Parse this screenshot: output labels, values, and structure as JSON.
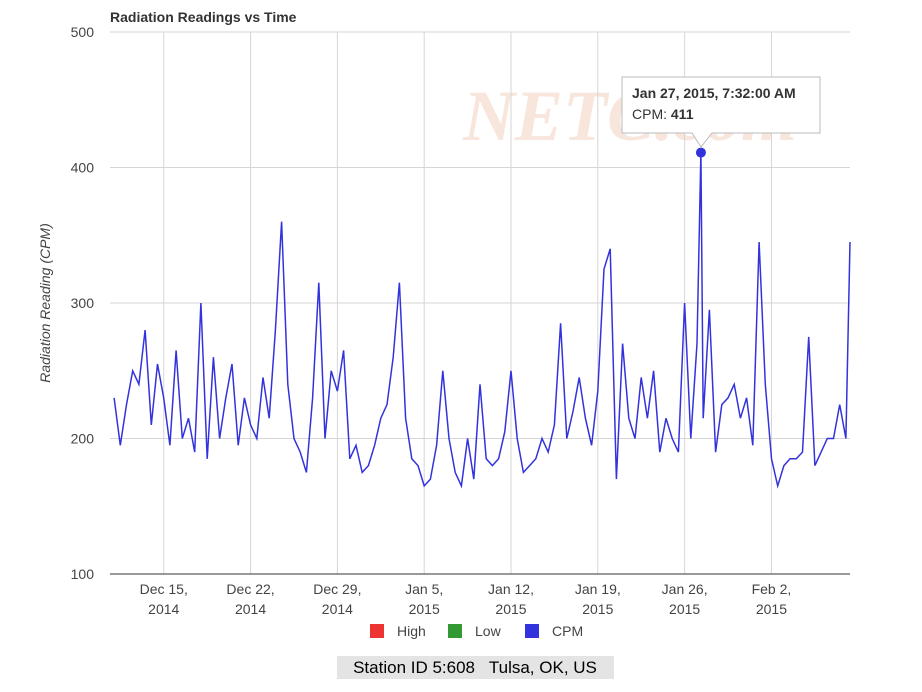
{
  "chart_data": {
    "type": "line",
    "title": "Radiation Readings vs Time",
    "y_label": "Radiation Reading (CPM)",
    "watermark": "NETC.com",
    "footer": "Station ID 5:608   Tulsa, OK, US",
    "tooltip": {
      "title": "Jan 27, 2015, 7:32:00 AM",
      "label": "CPM:"
    },
    "xlim": [
      "2014-12-10T16:00",
      "2015-02-08T08:00"
    ],
    "xticks": [
      {
        "value": "2014-12-15T00:00",
        "label": "Dec 15, 2014"
      },
      {
        "value": "2014-12-22T00:00",
        "label": "Dec 22, 2014"
      },
      {
        "value": "2014-12-29T00:00",
        "label": "Dec 29, 2014"
      },
      {
        "value": "2015-01-05T00:00",
        "label": "Jan 5, 2015"
      },
      {
        "value": "2015-01-12T00:00",
        "label": "Jan 12, 2015"
      },
      {
        "value": "2015-01-19T00:00",
        "label": "Jan 19, 2015"
      },
      {
        "value": "2015-01-26T00:00",
        "label": "Jan 26, 2015"
      },
      {
        "value": "2015-02-02T00:00",
        "label": "Feb 2, 2015"
      }
    ],
    "ylim": [
      100,
      500
    ],
    "yticks": [
      100,
      200,
      300,
      400,
      500
    ],
    "grid": true,
    "x": [
      "2014-12-11T00:00",
      "2014-12-11T12:00",
      "2014-12-12T00:00",
      "2014-12-12T12:00",
      "2014-12-13T00:00",
      "2014-12-13T12:00",
      "2014-12-14T00:00",
      "2014-12-14T12:00",
      "2014-12-15T00:00",
      "2014-12-15T12:00",
      "2014-12-16T00:00",
      "2014-12-16T12:00",
      "2014-12-17T00:00",
      "2014-12-17T12:00",
      "2014-12-18T00:00",
      "2014-12-18T12:00",
      "2014-12-19T00:00",
      "2014-12-19T12:00",
      "2014-12-20T00:00",
      "2014-12-20T12:00",
      "2014-12-21T00:00",
      "2014-12-21T12:00",
      "2014-12-22T00:00",
      "2014-12-22T12:00",
      "2014-12-23T00:00",
      "2014-12-23T12:00",
      "2014-12-24T00:00",
      "2014-12-24T12:00",
      "2014-12-25T00:00",
      "2014-12-25T12:00",
      "2014-12-26T00:00",
      "2014-12-26T12:00",
      "2014-12-27T00:00",
      "2014-12-27T12:00",
      "2014-12-28T00:00",
      "2014-12-28T12:00",
      "2014-12-29T00:00",
      "2014-12-29T12:00",
      "2014-12-30T00:00",
      "2014-12-30T12:00",
      "2014-12-31T00:00",
      "2014-12-31T12:00",
      "2015-01-01T00:00",
      "2015-01-01T12:00",
      "2015-01-02T00:00",
      "2015-01-02T12:00",
      "2015-01-03T00:00",
      "2015-01-03T12:00",
      "2015-01-04T00:00",
      "2015-01-04T12:00",
      "2015-01-05T00:00",
      "2015-01-05T12:00",
      "2015-01-06T00:00",
      "2015-01-06T12:00",
      "2015-01-07T00:00",
      "2015-01-07T12:00",
      "2015-01-08T00:00",
      "2015-01-08T12:00",
      "2015-01-09T00:00",
      "2015-01-09T12:00",
      "2015-01-10T00:00",
      "2015-01-10T12:00",
      "2015-01-11T00:00",
      "2015-01-11T12:00",
      "2015-01-12T00:00",
      "2015-01-12T12:00",
      "2015-01-13T00:00",
      "2015-01-13T12:00",
      "2015-01-14T00:00",
      "2015-01-14T12:00",
      "2015-01-15T00:00",
      "2015-01-15T12:00",
      "2015-01-16T00:00",
      "2015-01-16T12:00",
      "2015-01-17T00:00",
      "2015-01-17T12:00",
      "2015-01-18T00:00",
      "2015-01-18T12:00",
      "2015-01-19T00:00",
      "2015-01-19T12:00",
      "2015-01-20T00:00",
      "2015-01-20T12:00",
      "2015-01-21T00:00",
      "2015-01-21T12:00",
      "2015-01-22T00:00",
      "2015-01-22T12:00",
      "2015-01-23T00:00",
      "2015-01-23T12:00",
      "2015-01-24T00:00",
      "2015-01-24T12:00",
      "2015-01-25T00:00",
      "2015-01-25T12:00",
      "2015-01-26T00:00",
      "2015-01-26T12:00",
      "2015-01-27T00:00",
      "2015-01-27T07:32",
      "2015-01-27T12:00",
      "2015-01-28T00:00",
      "2015-01-28T12:00",
      "2015-01-29T00:00",
      "2015-01-29T12:00",
      "2015-01-30T00:00",
      "2015-01-30T12:00",
      "2015-01-31T00:00",
      "2015-01-31T12:00",
      "2015-02-01T00:00",
      "2015-02-01T12:00",
      "2015-02-02T00:00",
      "2015-02-02T12:00",
      "2015-02-03T00:00",
      "2015-02-03T12:00",
      "2015-02-04T00:00",
      "2015-02-04T12:00",
      "2015-02-05T00:00",
      "2015-02-05T12:00",
      "2015-02-06T00:00",
      "2015-02-06T12:00",
      "2015-02-07T00:00",
      "2015-02-07T12:00",
      "2015-02-08T00:00",
      "2015-02-08T08:00"
    ],
    "series": [
      {
        "name": "High",
        "color": "#ee3333",
        "values": [
          null,
          null,
          null,
          null,
          null,
          null,
          null,
          null,
          null,
          null,
          null,
          null,
          null,
          null,
          null,
          null,
          null,
          null,
          null,
          null,
          null,
          null,
          null,
          null,
          null,
          null,
          null,
          null,
          null,
          null,
          null,
          null,
          null,
          null,
          null,
          null,
          null,
          null,
          null,
          null,
          null,
          null,
          null,
          null,
          null,
          null,
          null,
          null,
          null,
          null,
          null,
          null,
          null,
          null,
          null,
          null,
          null,
          null,
          null,
          null,
          null,
          null,
          null,
          null,
          null,
          null,
          null,
          null,
          null,
          null,
          null,
          null,
          null,
          null,
          null,
          null,
          null,
          null,
          null,
          null,
          null,
          null,
          null,
          null,
          null,
          null,
          null,
          null,
          null,
          null,
          null,
          null,
          null,
          null,
          null,
          null,
          null,
          null,
          null,
          null,
          null,
          null,
          null,
          null,
          null,
          null,
          null,
          null,
          null,
          null,
          null,
          null,
          null,
          null,
          null,
          null,
          null,
          null,
          null,
          null,
          null
        ]
      },
      {
        "name": "Low",
        "color": "#339933",
        "values": [
          null,
          null,
          null,
          null,
          null,
          null,
          null,
          null,
          null,
          null,
          null,
          null,
          null,
          null,
          null,
          null,
          null,
          null,
          null,
          null,
          null,
          null,
          null,
          null,
          null,
          null,
          null,
          null,
          null,
          null,
          null,
          null,
          null,
          null,
          null,
          null,
          null,
          null,
          null,
          null,
          null,
          null,
          null,
          null,
          null,
          null,
          null,
          null,
          null,
          null,
          null,
          null,
          null,
          null,
          null,
          null,
          null,
          null,
          null,
          null,
          null,
          null,
          null,
          null,
          null,
          null,
          null,
          null,
          null,
          null,
          null,
          null,
          null,
          null,
          null,
          null,
          null,
          null,
          null,
          null,
          null,
          null,
          null,
          null,
          null,
          null,
          null,
          null,
          null,
          null,
          null,
          null,
          null,
          null,
          null,
          null,
          null,
          null,
          null,
          null,
          null,
          null,
          null,
          null,
          null,
          null,
          null,
          null,
          null,
          null,
          null,
          null,
          null,
          null,
          null,
          null,
          null,
          null,
          null,
          null,
          null
        ]
      },
      {
        "name": "CPM",
        "color": "#3333dd",
        "values": [
          230,
          195,
          225,
          250,
          240,
          280,
          210,
          255,
          230,
          195,
          265,
          200,
          215,
          190,
          300,
          185,
          260,
          200,
          230,
          255,
          195,
          230,
          210,
          200,
          245,
          215,
          280,
          360,
          240,
          200,
          190,
          175,
          230,
          315,
          200,
          250,
          235,
          265,
          185,
          195,
          175,
          180,
          195,
          215,
          225,
          260,
          315,
          215,
          185,
          180,
          165,
          170,
          195,
          250,
          200,
          175,
          165,
          200,
          170,
          240,
          185,
          180,
          185,
          205,
          250,
          200,
          175,
          180,
          185,
          200,
          190,
          210,
          285,
          200,
          220,
          245,
          215,
          195,
          235,
          325,
          340,
          170,
          270,
          215,
          200,
          245,
          215,
          250,
          190,
          215,
          200,
          190,
          300,
          200,
          270,
          411,
          215,
          295,
          190,
          225,
          230,
          240,
          215,
          230,
          195,
          345,
          240,
          185,
          165,
          180,
          185,
          185,
          190,
          275,
          180,
          190,
          200,
          200,
          225,
          200,
          345
        ]
      }
    ]
  }
}
